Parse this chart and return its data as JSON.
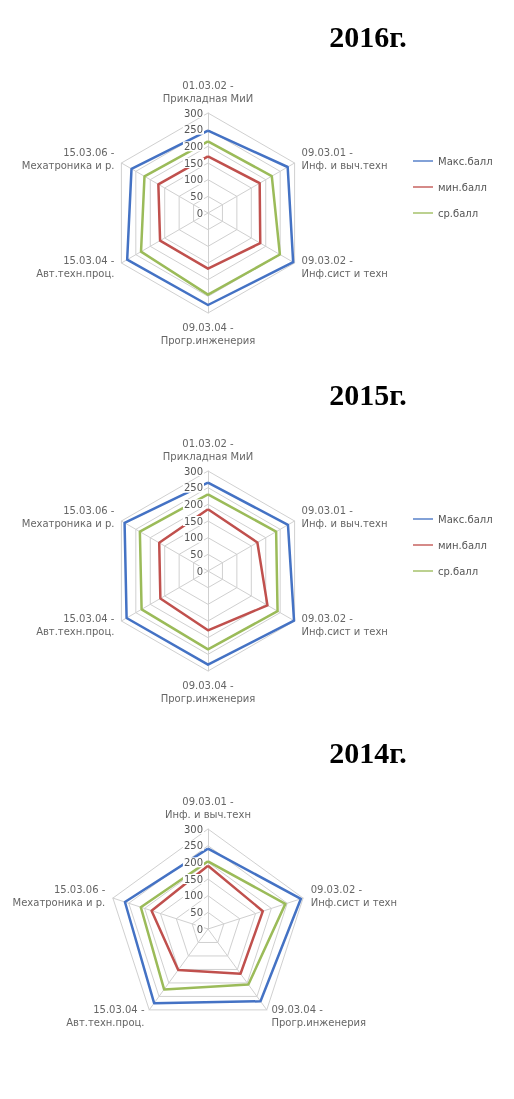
{
  "chart_data": [
    {
      "type": "radar",
      "title": "2016г.",
      "categories": [
        "01.03.02 - Прикладная МиИ",
        "09.03.01 - Инф. и выч.техн",
        "09.03.02 - Инф.сист и техн",
        "09.03.04 - Прогр.инженерия",
        "15.03.04 - Авт.техн.проц.",
        "15.03.06 - Мехатроника и р."
      ],
      "ylim": [
        0,
        300
      ],
      "yticks": [
        0,
        50,
        100,
        150,
        200,
        250,
        300
      ],
      "grid": true,
      "legend": "right",
      "marker": "none",
      "line_style": "solid",
      "series": [
        {
          "name": "Макс.балл",
          "color": "#4472c4",
          "values": [
            247,
            276,
            295,
            276,
            280,
            265
          ]
        },
        {
          "name": "мин.балл",
          "color": "#c0504d",
          "values": [
            170,
            179,
            181,
            167,
            166,
            172
          ]
        },
        {
          "name": "ср.балл",
          "color": "#9bbb59",
          "values": [
            215,
            221,
            249,
            245,
            232,
            220
          ]
        }
      ]
    },
    {
      "type": "radar",
      "title": "2015г.",
      "categories": [
        "01.03.02 - Прикладная МиИ",
        "09.03.01 - Инф. и выч.техн",
        "09.03.02 - Инф.сист и техн",
        "09.03.04 - Прогр.инженерия",
        "15.03.04 - Авт.техн.проц.",
        "15.03.06 - Мехатроника и р."
      ],
      "ylim": [
        0,
        300
      ],
      "yticks": [
        0,
        50,
        100,
        150,
        200,
        250,
        300
      ],
      "grid": true,
      "legend": "right",
      "marker": "none",
      "line_style": "solid",
      "series": [
        {
          "name": "Макс.балл",
          "color": "#4472c4",
          "values": [
            265,
            277,
            298,
            281,
            282,
            289
          ]
        },
        {
          "name": "мин.балл",
          "color": "#c0504d",
          "values": [
            185,
            171,
            206,
            178,
            165,
            169
          ]
        },
        {
          "name": "ср.балл",
          "color": "#9bbb59",
          "values": [
            230,
            236,
            241,
            235,
            230,
            236
          ]
        }
      ]
    },
    {
      "type": "radar",
      "title": "2014г.",
      "categories": [
        "09.03.01 - Инф. и выч.техн",
        "09.03.02 - Инф.сист и техн",
        "09.03.04 - Прогр.инженерия",
        "15.03.04 - Авт.техн.проц.",
        "15.03.06 - Мехатроника и р."
      ],
      "ylim": [
        0,
        300
      ],
      "yticks": [
        0,
        50,
        100,
        150,
        200,
        250,
        300
      ],
      "grid": true,
      "legend": false,
      "marker": "none",
      "line_style": "solid",
      "series": [
        {
          "color": "#4472c4",
          "values": [
            241,
            293,
            268,
            275,
            262
          ]
        },
        {
          "color": "#c0504d",
          "values": [
            190,
            173,
            166,
            152,
            178
          ]
        },
        {
          "color": "#9bbb59",
          "values": [
            203,
            244,
            206,
            224,
            212
          ]
        }
      ]
    }
  ]
}
